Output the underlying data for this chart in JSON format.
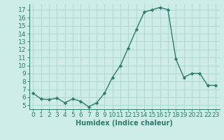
{
  "x": [
    0,
    1,
    2,
    3,
    4,
    5,
    6,
    7,
    8,
    9,
    10,
    11,
    12,
    13,
    14,
    15,
    16,
    17,
    18,
    19,
    20,
    21,
    22,
    23
  ],
  "y": [
    6.5,
    5.8,
    5.7,
    5.9,
    5.3,
    5.8,
    5.5,
    4.8,
    5.3,
    6.5,
    8.5,
    10.0,
    12.2,
    14.5,
    16.7,
    17.0,
    17.3,
    17.0,
    10.8,
    8.5,
    9.0,
    9.0,
    7.5,
    7.5
  ],
  "line_color": "#2e7d6e",
  "marker": "D",
  "marker_size": 2.2,
  "line_width": 1.0,
  "bg_color": "#cdecea",
  "grid_color": "#b5d9d7",
  "xlabel": "Humidex (Indice chaleur)",
  "xlabel_fontsize": 7,
  "tick_fontsize": 6.5,
  "ylim": [
    4.5,
    17.7
  ],
  "xlim": [
    -0.5,
    23.5
  ],
  "yticks": [
    5,
    6,
    7,
    8,
    9,
    10,
    11,
    12,
    13,
    14,
    15,
    16,
    17
  ],
  "xticks": [
    0,
    1,
    2,
    3,
    4,
    5,
    6,
    7,
    8,
    9,
    10,
    11,
    12,
    13,
    14,
    15,
    16,
    17,
    18,
    19,
    20,
    21,
    22,
    23
  ]
}
